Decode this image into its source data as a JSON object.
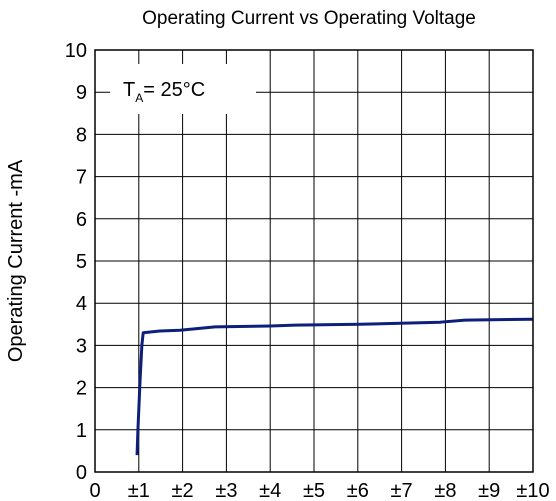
{
  "chart_data": {
    "type": "line",
    "title": "Operating Current vs Operating Voltage",
    "y_label": "Operating Current -mA",
    "annotation": {
      "main": "T",
      "sub": "A",
      "rest": "= 25°C"
    },
    "x": [
      0.96,
      0.98,
      1.03,
      1.07,
      1.1,
      1.48,
      1.94,
      2.74,
      4.0,
      4.57,
      6.05,
      7.88,
      8.45,
      10
    ],
    "series": [
      {
        "name": "Operating Current",
        "color": "#0d1f7a",
        "values": [
          0.4,
          1.0,
          2.2,
          3.0,
          3.3,
          3.34,
          3.36,
          3.44,
          3.46,
          3.48,
          3.5,
          3.55,
          3.6,
          3.62
        ]
      }
    ],
    "xlim": [
      0,
      10
    ],
    "xticks": [
      0,
      {
        "value": 1,
        "label": "±1"
      },
      {
        "value": 2,
        "label": "±2"
      },
      {
        "value": 3,
        "label": "±3"
      },
      {
        "value": 4,
        "label": "±4"
      },
      {
        "value": 5,
        "label": "±5"
      },
      {
        "value": 6,
        "label": "±6"
      },
      {
        "value": 7,
        "label": "±7"
      },
      {
        "value": 8,
        "label": "±8"
      },
      {
        "value": 9,
        "label": "±9"
      },
      {
        "value": 10,
        "label": "±10"
      }
    ],
    "ylim": [
      0,
      10
    ],
    "yticks": [
      0,
      1,
      2,
      3,
      4,
      5,
      6,
      7,
      8,
      9,
      10
    ],
    "grid": true
  }
}
